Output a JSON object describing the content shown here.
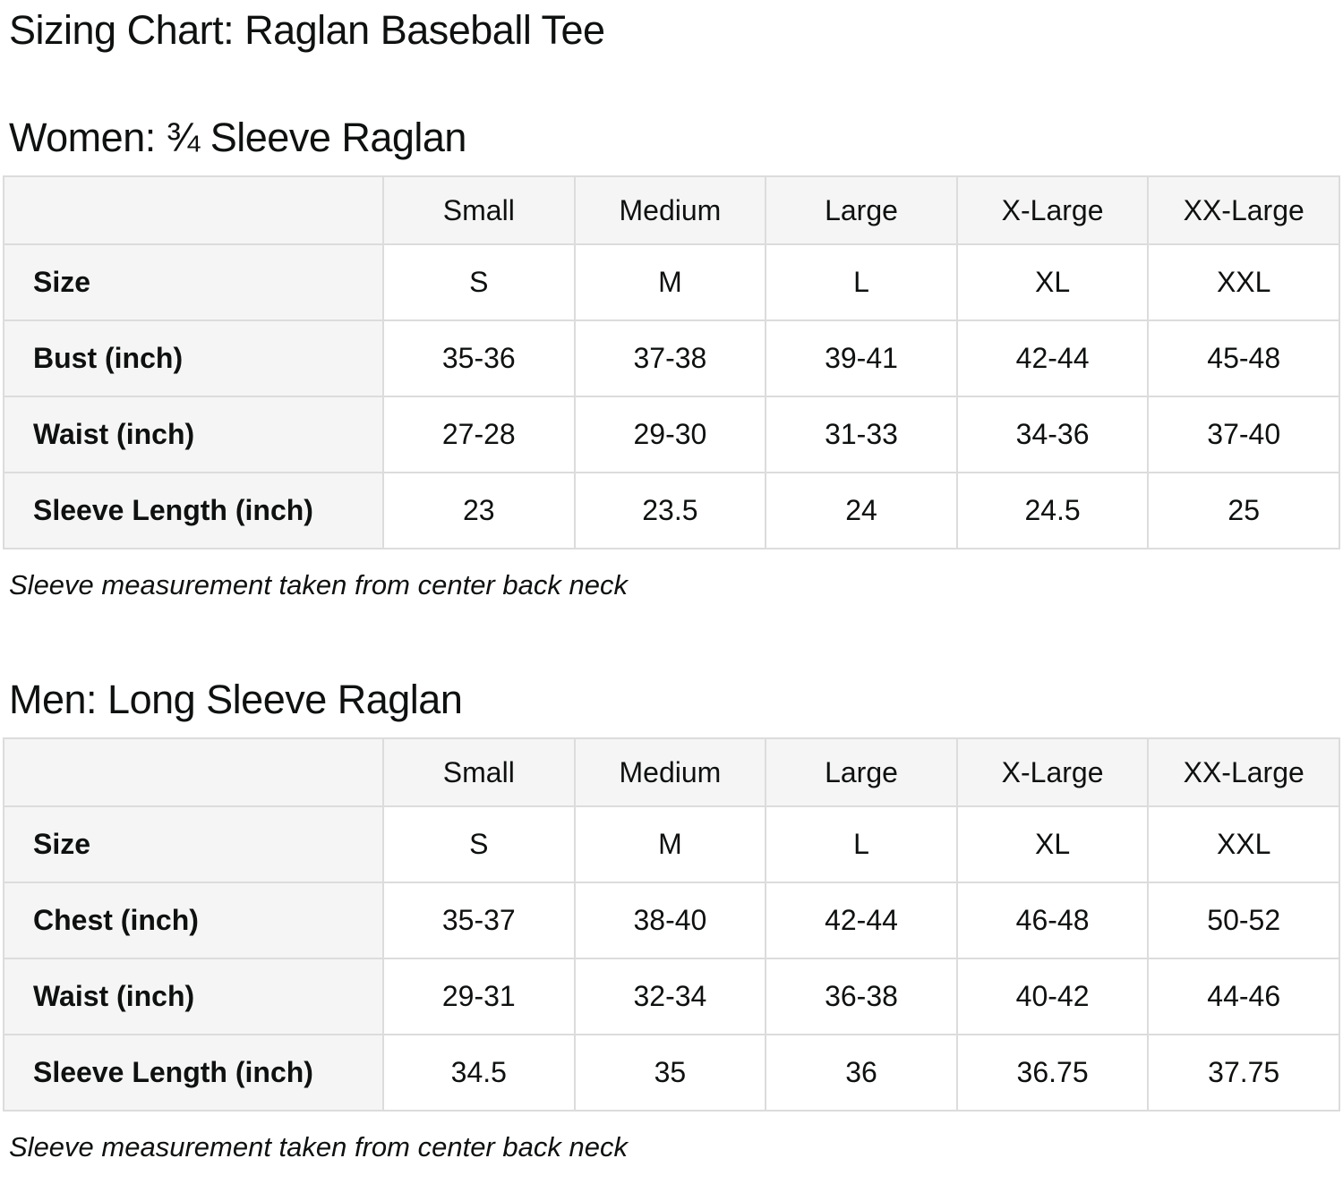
{
  "page": {
    "title": "Sizing Chart: Raglan Baseball Tee"
  },
  "colors": {
    "header_bg": "#f5f5f5",
    "border": "#dcdcdc",
    "text": "#0f1111",
    "background": "#ffffff"
  },
  "sections": [
    {
      "heading": "Women: ¾ Sleeve Raglan",
      "note": "Sleeve measurement taken from center back neck",
      "table": {
        "column_headers": [
          "",
          "Small",
          "Medium",
          "Large",
          "X-Large",
          "XX-Large"
        ],
        "rows": [
          {
            "label": "Size",
            "values": [
              "S",
              "M",
              "L",
              "XL",
              "XXL"
            ]
          },
          {
            "label": "Bust (inch)",
            "values": [
              "35-36",
              "37-38",
              "39-41",
              "42-44",
              "45-48"
            ]
          },
          {
            "label": "Waist (inch)",
            "values": [
              "27-28",
              "29-30",
              "31-33",
              "34-36",
              "37-40"
            ]
          },
          {
            "label": "Sleeve Length (inch)",
            "values": [
              "23",
              "23.5",
              "24",
              "24.5",
              "25"
            ]
          }
        ]
      }
    },
    {
      "heading": "Men: Long Sleeve Raglan",
      "note": "Sleeve measurement taken from center back neck",
      "table": {
        "column_headers": [
          "",
          "Small",
          "Medium",
          "Large",
          "X-Large",
          "XX-Large"
        ],
        "rows": [
          {
            "label": "Size",
            "values": [
              "S",
              "M",
              "L",
              "XL",
              "XXL"
            ]
          },
          {
            "label": "Chest (inch)",
            "values": [
              "35-37",
              "38-40",
              "42-44",
              "46-48",
              "50-52"
            ]
          },
          {
            "label": "Waist (inch)",
            "values": [
              "29-31",
              "32-34",
              "36-38",
              "40-42",
              "44-46"
            ]
          },
          {
            "label": "Sleeve Length (inch)",
            "values": [
              "34.5",
              "35",
              "36",
              "36.75",
              "37.75"
            ]
          }
        ]
      }
    }
  ]
}
